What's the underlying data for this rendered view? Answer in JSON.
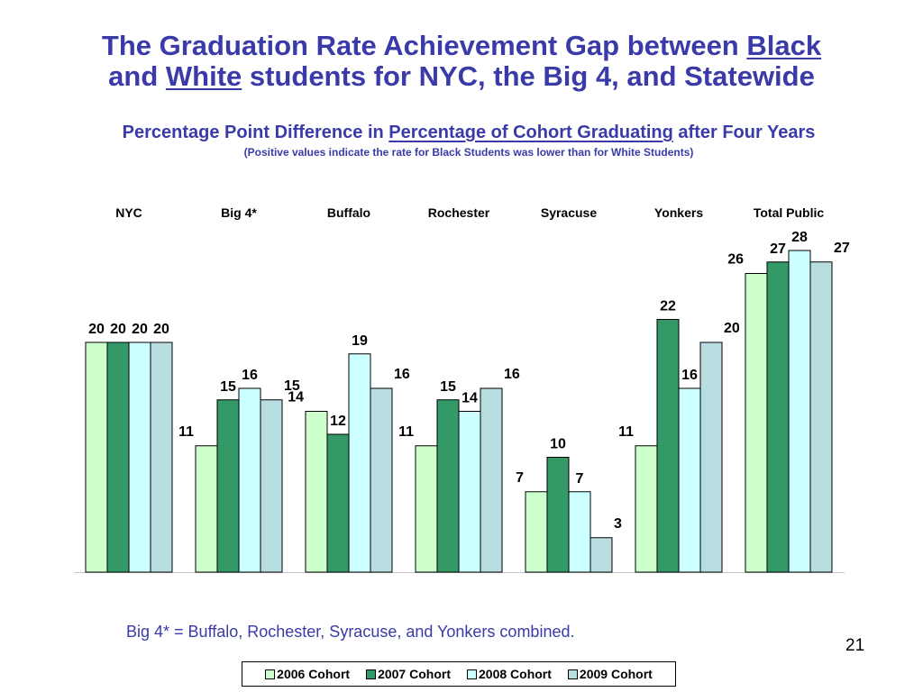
{
  "title": {
    "line1_a": "The Graduation Rate Achievement Gap between ",
    "line1_b": "Black",
    "line2_a": "and ",
    "line2_b": "White",
    "line2_c": " students for NYC, the Big 4, and Statewide"
  },
  "subtitle": {
    "part_a": "Percentage Point Difference in ",
    "part_b": "Percentage of Cohort Graduating",
    "part_c": " after Four Years"
  },
  "note": "(Positive values indicate the rate for Black Students was lower than for White Students)",
  "footnote": "Big 4* = Buffalo, Rochester, Syracuse, and Yonkers combined.",
  "page_number": "21",
  "colors": {
    "title": "#3a3aa8",
    "series": [
      "#ccffcc",
      "#339966",
      "#ccffff",
      "#b8dde0"
    ]
  },
  "chart_data": {
    "type": "bar",
    "categories": [
      "NYC",
      "Big 4*",
      "Buffalo",
      "Rochester",
      "Syracuse",
      "Yonkers",
      "Total Public"
    ],
    "series": [
      {
        "name": "2006 Cohort",
        "values": [
          20,
          11,
          14,
          11,
          7,
          11,
          26
        ]
      },
      {
        "name": "2007 Cohort",
        "values": [
          20,
          15,
          12,
          15,
          10,
          22,
          27
        ]
      },
      {
        "name": "2008 Cohort",
        "values": [
          20,
          16,
          19,
          14,
          7,
          16,
          28
        ]
      },
      {
        "name": "2009 Cohort",
        "values": [
          20,
          15,
          16,
          16,
          3,
          20,
          27
        ]
      }
    ],
    "ylim": [
      0,
      28
    ],
    "category_labels_position": "top",
    "legend_position": "bottom",
    "grid": false,
    "data_labels": true
  }
}
